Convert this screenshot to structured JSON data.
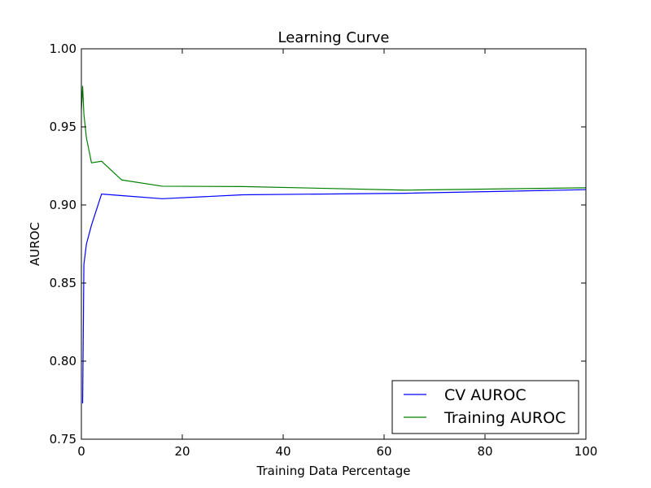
{
  "chart_data": {
    "type": "line",
    "title": "Learning Curve",
    "xlabel": "Training Data Percentage",
    "ylabel": "AUROC",
    "xlim": [
      0,
      100
    ],
    "ylim": [
      0.75,
      1.0
    ],
    "xticks": [
      0,
      20,
      40,
      60,
      80,
      100
    ],
    "yticks": [
      0.75,
      0.8,
      0.85,
      0.9,
      0.95,
      1.0
    ],
    "grid": false,
    "legend_position": "lower-right",
    "series": [
      {
        "name": "CV AUROC",
        "color": "#0000ff",
        "x": [
          0.25,
          0.5,
          1,
          2,
          4,
          8,
          16,
          32,
          64,
          100
        ],
        "y": [
          0.773,
          0.862,
          0.875,
          0.887,
          0.907,
          0.906,
          0.904,
          0.9065,
          0.9075,
          0.9098
        ]
      },
      {
        "name": "Training AUROC",
        "color": "#008000",
        "x": [
          0,
          0.25,
          0.5,
          1,
          2,
          4,
          8,
          16,
          32,
          64,
          100
        ],
        "y": [
          0.961,
          0.976,
          0.958,
          0.943,
          0.927,
          0.928,
          0.916,
          0.912,
          0.9118,
          0.9095,
          0.911
        ]
      }
    ]
  }
}
